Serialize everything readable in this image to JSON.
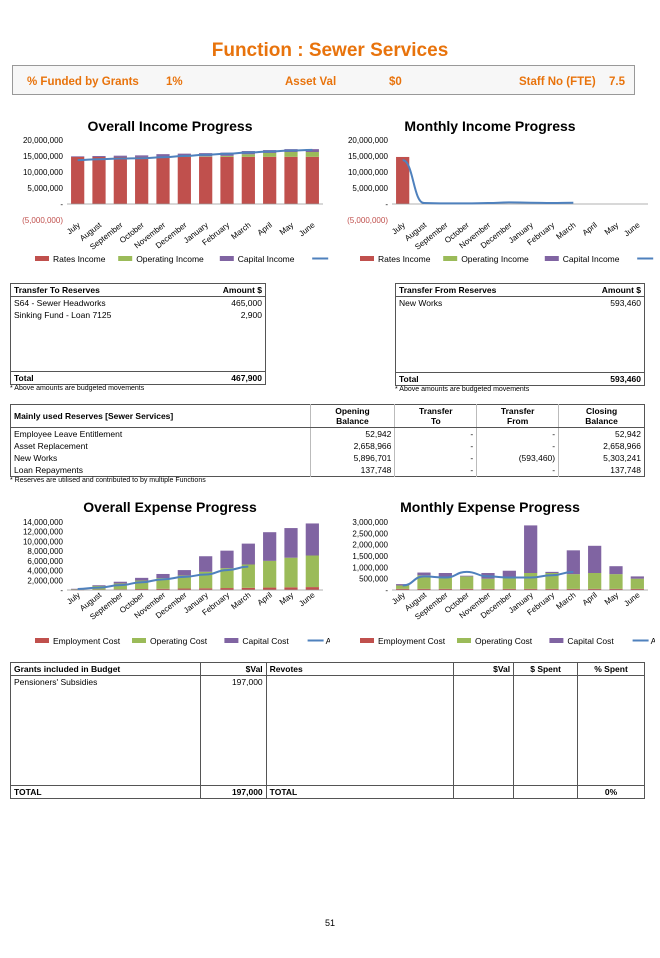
{
  "page_title": "Function : Sewer Services",
  "summary": {
    "grants_label": "% Funded by Grants",
    "grants_value": "1%",
    "asset_label": "Asset Val",
    "asset_value": "$0",
    "staff_label": "Staff No (FTE)",
    "staff_value": "7.5"
  },
  "months": [
    "July",
    "August",
    "September",
    "October",
    "November",
    "December",
    "January",
    "February",
    "March",
    "April",
    "May",
    "June"
  ],
  "colors": {
    "red": "#C0504D",
    "green": "#9BBB59",
    "purple": "#8064A2",
    "blue": "#4F81BD",
    "orange": "#E8730C"
  },
  "chart_data": [
    {
      "type": "bar",
      "title": "Overall Income Progress",
      "y_ticks": [
        "20,000,000",
        "15,000,000",
        "10,000,000",
        "5,000,000",
        "-",
        "(5,000,000)"
      ],
      "ylim": [
        -5000000,
        20000000
      ],
      "series": [
        {
          "name": "Rates Income",
          "values": [
            14700000,
            14700000,
            14700000,
            14700000,
            14700000,
            14750000,
            14750000,
            14750000,
            14750000,
            14750000,
            14750000,
            14750000
          ]
        },
        {
          "name": "Operating Income",
          "values": [
            0,
            0,
            0,
            0,
            80000,
            90000,
            150000,
            300000,
            800000,
            1200000,
            1500000,
            1500000
          ]
        },
        {
          "name": "Capital Income",
          "values": [
            200000,
            300000,
            400000,
            500000,
            800000,
            900000,
            1000000,
            1000000,
            1000000,
            900000,
            900000,
            900000
          ]
        },
        {
          "name": "Actual",
          "values": [
            13700000,
            14000000,
            14200000,
            14300000,
            14600000,
            15000000,
            15400000,
            15700000,
            16100000,
            16400000,
            16700000,
            16900000
          ]
        }
      ],
      "legend": [
        "Rates Income",
        "Operating Income",
        "Capital Income",
        "Actual"
      ]
    },
    {
      "type": "bar",
      "title": "Monthly Income Progress",
      "y_ticks": [
        "20,000,000",
        "15,000,000",
        "10,000,000",
        "5,000,000",
        "-",
        "(5,000,000)"
      ],
      "ylim": [
        -5000000,
        20000000
      ],
      "series": [
        {
          "name": "Rates Income",
          "values": [
            14700000,
            0,
            0,
            0,
            0,
            0,
            0,
            0,
            0,
            0,
            0,
            0
          ]
        },
        {
          "name": "Operating Income",
          "values": [
            0,
            0,
            0,
            0,
            0,
            0,
            0,
            0,
            0,
            0,
            0,
            0
          ]
        },
        {
          "name": "Capital Income",
          "values": [
            0,
            0,
            0,
            0,
            0,
            0,
            0,
            0,
            0,
            0,
            0,
            0
          ]
        },
        {
          "name": "Actual",
          "values": [
            13700000,
            300000,
            200000,
            200000,
            300000,
            500000,
            400000,
            300000,
            400000,
            null,
            null,
            null
          ]
        }
      ],
      "legend": [
        "Rates Income",
        "Operating Income",
        "Capital Income",
        "Actual"
      ]
    },
    {
      "type": "bar",
      "title": "Overall Expense Progress",
      "y_ticks": [
        "14,000,000",
        "12,000,000",
        "10,000,000",
        "8,000,000",
        "6,000,000",
        "4,000,000",
        "2,000,000",
        "-"
      ],
      "ylim": [
        0,
        14000000
      ],
      "series": [
        {
          "name": "Employment Cost",
          "values": [
            50000,
            100000,
            150000,
            200000,
            250000,
            300000,
            350000,
            400000,
            450000,
            500000,
            550000,
            600000
          ]
        },
        {
          "name": "Operating Cost",
          "values": [
            150000,
            750000,
            1200000,
            1750000,
            2200000,
            2700000,
            3400000,
            4100000,
            4800000,
            5500000,
            6100000,
            6500000
          ]
        },
        {
          "name": "Capital Cost",
          "values": [
            50000,
            150000,
            350000,
            550000,
            850000,
            1100000,
            3200000,
            3600000,
            4300000,
            5900000,
            6100000,
            6600000
          ]
        },
        {
          "name": "Actual",
          "values": [
            200000,
            500000,
            1000000,
            1600000,
            2200000,
            2700000,
            3200000,
            4100000,
            4800000,
            null,
            null,
            null
          ]
        }
      ],
      "legend": [
        "Employment Cost",
        "Operating Cost",
        "Capital Cost",
        "Actual"
      ]
    },
    {
      "type": "bar",
      "title": "Monthly Expense Progress",
      "y_ticks": [
        "3,000,000",
        "2,500,000",
        "2,000,000",
        "1,500,000",
        "1,000,000",
        "500,000",
        "-"
      ],
      "ylim": [
        0,
        3000000
      ],
      "series": [
        {
          "name": "Employment Cost",
          "values": [
            50000,
            50000,
            50000,
            50000,
            50000,
            50000,
            50000,
            50000,
            50000,
            50000,
            50000,
            50000
          ]
        },
        {
          "name": "Operating Cost",
          "values": [
            150000,
            600000,
            500000,
            550000,
            450000,
            500000,
            700000,
            700000,
            650000,
            700000,
            650000,
            450000
          ]
        },
        {
          "name": "Capital Cost",
          "values": [
            60000,
            120000,
            200000,
            30000,
            250000,
            300000,
            2100000,
            50000,
            1050000,
            1200000,
            350000,
            100000
          ]
        },
        {
          "name": "Actual",
          "values": [
            200000,
            600000,
            550000,
            800000,
            600000,
            550000,
            550000,
            650000,
            800000,
            null,
            null,
            null
          ]
        }
      ],
      "legend": [
        "Employment Cost",
        "Operating Cost",
        "Capital Cost",
        "Actual"
      ]
    }
  ],
  "transfer_to": {
    "header_label": "Transfer To Reserves",
    "header_amount": "Amount $",
    "rows": [
      {
        "label": "S64 - Sewer Headworks",
        "amount": "465,000"
      },
      {
        "label": "Sinking Fund - Loan 7125",
        "amount": "2,900"
      }
    ],
    "total_label": "Total",
    "total_amount": "467,900",
    "note": "* Above amounts are budgeted movements"
  },
  "transfer_from": {
    "header_label": "Transfer From Reserves",
    "header_amount": "Amount $",
    "rows": [
      {
        "label": "New Works",
        "amount": "593,460"
      }
    ],
    "total_label": "Total",
    "total_amount": "593,460",
    "note": "* Above amounts are budgeted movements"
  },
  "reserves": {
    "title": "Mainly used Reserves [Sewer Services]",
    "col1a": "Opening",
    "col1b": "Balance",
    "col2a": "Transfer",
    "col2b": "To",
    "col3a": "Transfer",
    "col3b": "From",
    "col4a": "Closing",
    "col4b": "Balance",
    "rows": [
      {
        "label": "Employee Leave Entitlement",
        "opening": "52,942",
        "to": "-",
        "from": "-",
        "closing": "52,942"
      },
      {
        "label": "Asset Replacement",
        "opening": "2,658,966",
        "to": "-",
        "from": "-",
        "closing": "2,658,966"
      },
      {
        "label": "New Works",
        "opening": "5,896,701",
        "to": "-",
        "from": "(593,460)",
        "closing": "5,303,241"
      },
      {
        "label": "Loan Repayments",
        "opening": "137,748",
        "to": "-",
        "from": "-",
        "closing": "137,748"
      }
    ],
    "note": "* Reserves are utilised and contributed to by multiple Functions"
  },
  "grants": {
    "col_label": "Grants included in Budget",
    "col_val": "$Val",
    "col_revotes": "Revotes",
    "col_rval": "$Val",
    "col_spent": "$ Spent",
    "col_pct": "% Spent",
    "rows": [
      {
        "label": "Pensioners' Subsidies",
        "val": "197,000"
      }
    ],
    "total_label": "TOTAL",
    "total_val": "197,000",
    "revotes_total_label": "TOTAL",
    "pct_total": "0%"
  },
  "page_number": "51"
}
